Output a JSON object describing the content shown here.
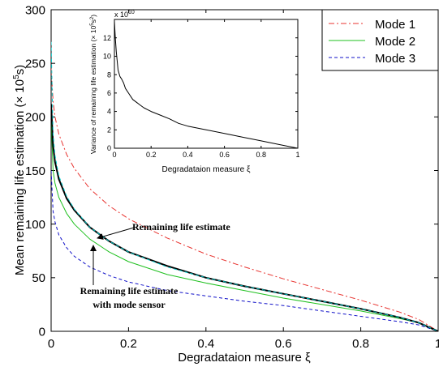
{
  "chart_data": {
    "type": "line",
    "xlabel": "Degradataion measure ξ",
    "ylabel": "Mean remaining life estimation (× 10",
    "ylabel_sup": "5",
    "ylabel_tail": "s)",
    "xlim": [
      0,
      1
    ],
    "ylim": [
      0,
      300
    ],
    "x_ticks": [
      "0",
      "0.2",
      "0.4",
      "0.6",
      "0.8",
      "1"
    ],
    "y_ticks": [
      "0",
      "50",
      "100",
      "150",
      "200",
      "250",
      "300"
    ],
    "grid": false,
    "legend_position": "top-right",
    "series": [
      {
        "name": "Mode 1",
        "color": "#e8332f",
        "dash": "dash-dot",
        "x": [
          0,
          0.005,
          0.01,
          0.02,
          0.04,
          0.06,
          0.1,
          0.15,
          0.2,
          0.3,
          0.4,
          0.5,
          0.6,
          0.7,
          0.8,
          0.9,
          0.95,
          1.0
        ],
        "y": [
          245,
          215,
          200,
          184,
          165,
          152,
          133,
          117,
          105,
          87,
          72,
          60,
          49,
          39,
          29,
          18,
          11,
          0
        ]
      },
      {
        "name": "Mode 2",
        "color": "#1fc01f",
        "dash": "solid",
        "x": [
          0,
          0.005,
          0.01,
          0.02,
          0.04,
          0.06,
          0.1,
          0.15,
          0.2,
          0.3,
          0.4,
          0.5,
          0.6,
          0.7,
          0.8,
          0.9,
          0.95,
          1.0
        ],
        "y": [
          200,
          150,
          138,
          125,
          110,
          100,
          86,
          74,
          65,
          53,
          45,
          38,
          31,
          25,
          19,
          12,
          8,
          0
        ]
      },
      {
        "name": "Mode 3",
        "color": "#1010c8",
        "dash": "dashed",
        "x": [
          0,
          0.005,
          0.01,
          0.02,
          0.04,
          0.06,
          0.1,
          0.15,
          0.2,
          0.3,
          0.4,
          0.5,
          0.6,
          0.7,
          0.8,
          0.9,
          0.95,
          1.0
        ],
        "y": [
          150,
          112,
          102,
          90,
          78,
          70,
          60,
          52,
          46,
          38,
          33,
          28,
          24,
          19,
          14,
          9,
          6,
          0
        ]
      },
      {
        "color": "#000000",
        "dash": "solid",
        "width": 2,
        "x": [
          0,
          0.005,
          0.01,
          0.02,
          0.04,
          0.06,
          0.1,
          0.15,
          0.2,
          0.3,
          0.4,
          0.5,
          0.6,
          0.7,
          0.8,
          0.9,
          0.95,
          1.0
        ],
        "y": [
          212,
          173,
          158,
          142,
          124,
          113,
          97,
          84,
          74,
          61,
          50,
          42,
          35,
          28,
          21,
          13,
          8,
          0
        ]
      },
      {
        "color": "#00c8c8",
        "dash": "dashed",
        "x": [
          0,
          0.005,
          0.01,
          0.02,
          0.04,
          0.06,
          0.1,
          0.15,
          0.2,
          0.3,
          0.4,
          0.5,
          0.6,
          0.7,
          0.8,
          0.9,
          0.95,
          1.0
        ],
        "y": [
          270,
          184,
          164,
          145,
          126,
          114,
          97,
          84,
          74,
          60,
          50,
          42,
          35,
          28,
          21,
          13,
          8,
          0
        ]
      }
    ],
    "annotations": [
      {
        "text": "Remaining life estimate",
        "x": 0.18,
        "y": 95
      },
      {
        "text": "Remaining life estimate",
        "text2": "with mode sensor",
        "x": 0.13,
        "y": 30
      }
    ],
    "inset": {
      "type": "line",
      "xlabel": "Degradataion measure ξ",
      "ylabel": "Variance of remaining life estimation (× 10",
      "ylabel_sup": "5",
      "ylabel_mid": "s",
      "ylabel_sup2": "2",
      "ylabel_tail": ")",
      "multiplier": "x 10",
      "multiplier_exp": "10",
      "xlim": [
        0,
        1
      ],
      "ylim": [
        0,
        14
      ],
      "x_ticks": [
        "0",
        "0.2",
        "0.4",
        "0.6",
        "0.8",
        "1"
      ],
      "y_ticks": [
        "0",
        "2",
        "4",
        "6",
        "8",
        "10",
        "12"
      ],
      "series": [
        {
          "color": "#000000",
          "x": [
            0,
            0.005,
            0.01,
            0.015,
            0.02,
            0.03,
            0.04,
            0.05,
            0.06,
            0.08,
            0.1,
            0.12,
            0.14,
            0.16,
            0.18,
            0.2,
            0.25,
            0.3,
            0.35,
            0.4,
            0.5,
            0.6,
            0.7,
            0.8,
            0.9,
            1.0
          ],
          "y": [
            13.8,
            12.0,
            10.5,
            9.5,
            8.5,
            7.8,
            7.5,
            7.1,
            6.5,
            5.9,
            5.3,
            5.0,
            4.7,
            4.4,
            4.2,
            4.0,
            3.6,
            3.2,
            2.7,
            2.4,
            2.0,
            1.6,
            1.2,
            0.8,
            0.4,
            0.0
          ]
        }
      ]
    }
  }
}
